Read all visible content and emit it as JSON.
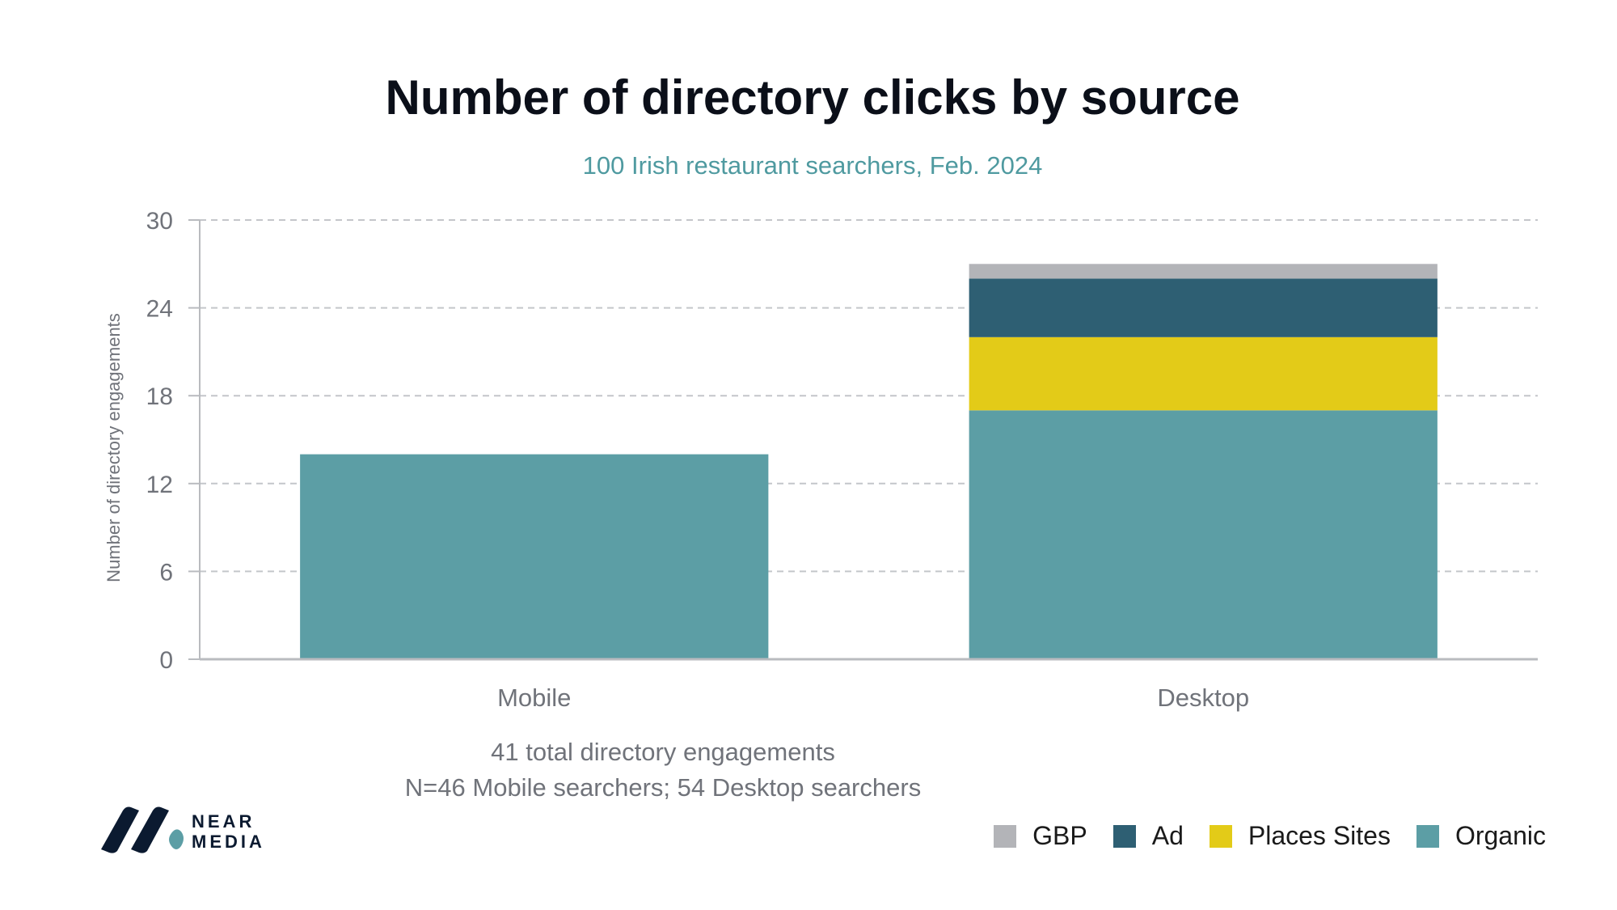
{
  "chart_data": {
    "type": "bar",
    "stacked": true,
    "title": "Number of directory clicks by source",
    "subtitle": "100 Irish restaurant searchers, Feb. 2024",
    "xlabel": "",
    "ylabel": "Number of directory engagements",
    "ylim": [
      0,
      30
    ],
    "yticks": [
      0,
      6,
      12,
      18,
      24,
      30
    ],
    "grid": true,
    "categories": [
      "Mobile",
      "Desktop"
    ],
    "series": [
      {
        "name": "Organic",
        "color": "#5c9ea5",
        "values": [
          14,
          17
        ]
      },
      {
        "name": "Places Sites",
        "color": "#e3cb18",
        "values": [
          0,
          5
        ]
      },
      {
        "name": "Ad",
        "color": "#2e5f73",
        "values": [
          0,
          4
        ]
      },
      {
        "name": "GBP",
        "color": "#b3b4b8",
        "values": [
          0,
          1
        ]
      }
    ],
    "legend_order": [
      "GBP",
      "Ad",
      "Places Sites",
      "Organic"
    ],
    "legend_position": "bottom-right",
    "notes": [
      "41 total directory engagements",
      "N=46 Mobile searchers; 54 Desktop searchers"
    ]
  },
  "logo": {
    "line1": "NEAR",
    "line2": "MEDIA"
  }
}
